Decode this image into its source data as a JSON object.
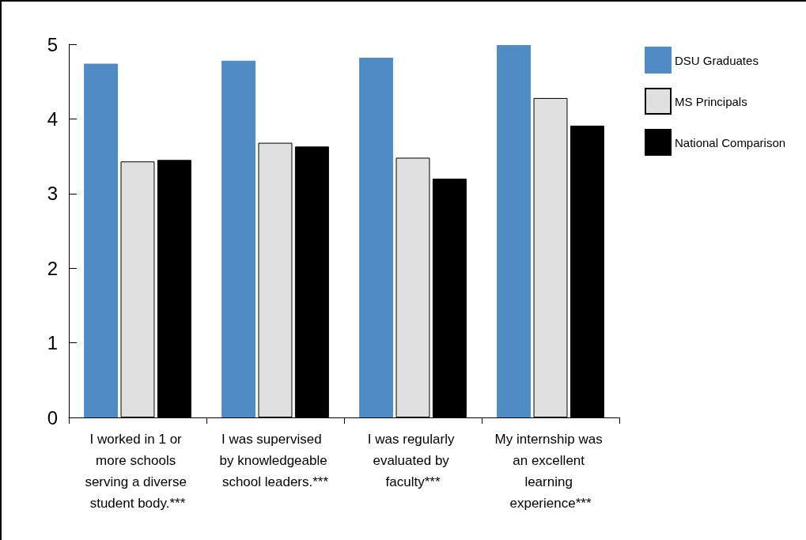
{
  "chart_data": {
    "type": "bar",
    "categories": [
      "I worked in 1 or more schools serving a diverse student body.***",
      "I was supervised  by knowledgeable school leaders.***",
      "I was regularly evaluated by faculty***",
      "My internship was an excellent learning experience***"
    ],
    "series": [
      {
        "name": "DSU Graduates",
        "color": "#4f8bc4",
        "values": [
          4.74,
          4.78,
          4.82,
          4.99
        ]
      },
      {
        "name": "MS Principals",
        "color": "#e0e0e0",
        "values": [
          3.43,
          3.68,
          3.48,
          4.28
        ]
      },
      {
        "name": "National Comparison",
        "color": "#000000",
        "values": [
          3.45,
          3.63,
          3.2,
          3.91
        ]
      }
    ],
    "ylim": [
      0,
      5
    ],
    "yticks": [
      0,
      1,
      2,
      3,
      4,
      5
    ],
    "grid": false,
    "legend": "top right"
  }
}
